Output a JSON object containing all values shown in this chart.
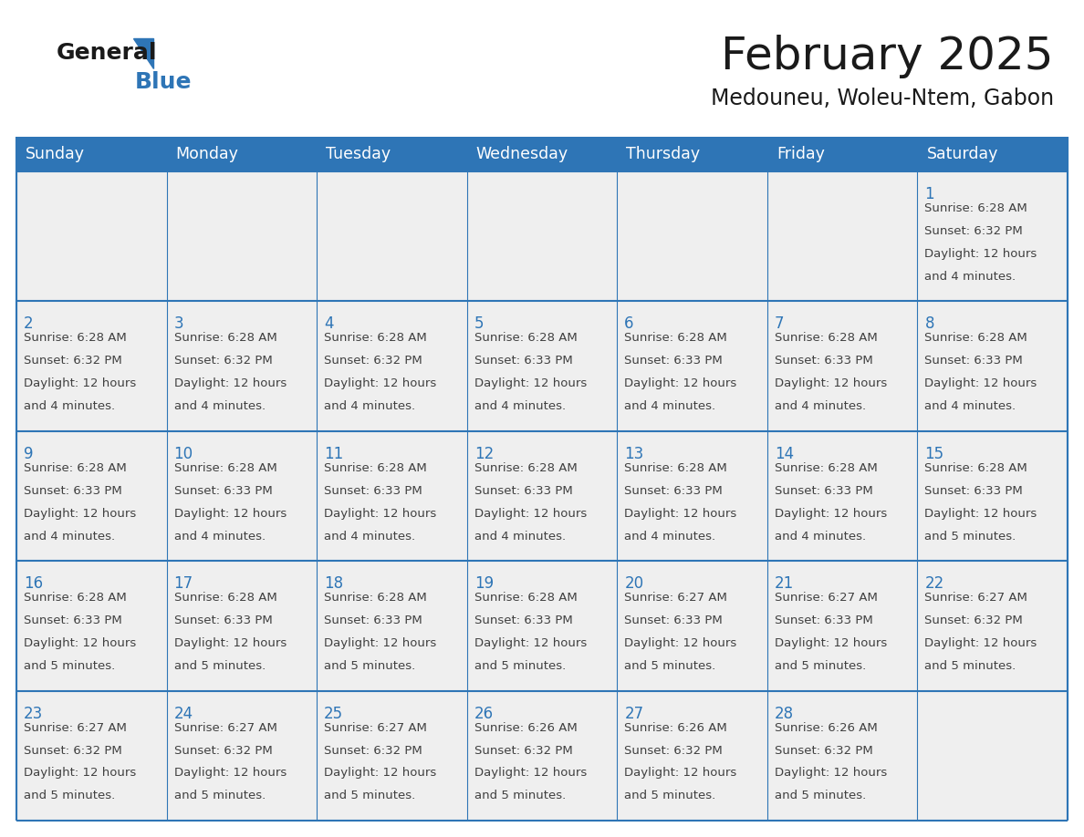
{
  "title": "February 2025",
  "subtitle": "Medouneu, Woleu-Ntem, Gabon",
  "days_of_week": [
    "Sunday",
    "Monday",
    "Tuesday",
    "Wednesday",
    "Thursday",
    "Friday",
    "Saturday"
  ],
  "header_bg": "#2E75B6",
  "header_text": "#FFFFFF",
  "cell_bg": "#EFEFEF",
  "border_color": "#2E75B6",
  "day_num_color": "#2E75B6",
  "cell_text_color": "#404040",
  "title_color": "#1a1a1a",
  "subtitle_color": "#1a1a1a",
  "logo_general_color": "#1a1a1a",
  "logo_blue_color": "#2E75B6",
  "calendar_data": [
    [
      null,
      null,
      null,
      null,
      null,
      null,
      1
    ],
    [
      2,
      3,
      4,
      5,
      6,
      7,
      8
    ],
    [
      9,
      10,
      11,
      12,
      13,
      14,
      15
    ],
    [
      16,
      17,
      18,
      19,
      20,
      21,
      22
    ],
    [
      23,
      24,
      25,
      26,
      27,
      28,
      null
    ]
  ],
  "sunrise_data": {
    "1": "6:28 AM",
    "2": "6:28 AM",
    "3": "6:28 AM",
    "4": "6:28 AM",
    "5": "6:28 AM",
    "6": "6:28 AM",
    "7": "6:28 AM",
    "8": "6:28 AM",
    "9": "6:28 AM",
    "10": "6:28 AM",
    "11": "6:28 AM",
    "12": "6:28 AM",
    "13": "6:28 AM",
    "14": "6:28 AM",
    "15": "6:28 AM",
    "16": "6:28 AM",
    "17": "6:28 AM",
    "18": "6:28 AM",
    "19": "6:28 AM",
    "20": "6:27 AM",
    "21": "6:27 AM",
    "22": "6:27 AM",
    "23": "6:27 AM",
    "24": "6:27 AM",
    "25": "6:27 AM",
    "26": "6:26 AM",
    "27": "6:26 AM",
    "28": "6:26 AM"
  },
  "sunset_data": {
    "1": "6:32 PM",
    "2": "6:32 PM",
    "3": "6:32 PM",
    "4": "6:32 PM",
    "5": "6:33 PM",
    "6": "6:33 PM",
    "7": "6:33 PM",
    "8": "6:33 PM",
    "9": "6:33 PM",
    "10": "6:33 PM",
    "11": "6:33 PM",
    "12": "6:33 PM",
    "13": "6:33 PM",
    "14": "6:33 PM",
    "15": "6:33 PM",
    "16": "6:33 PM",
    "17": "6:33 PM",
    "18": "6:33 PM",
    "19": "6:33 PM",
    "20": "6:33 PM",
    "21": "6:33 PM",
    "22": "6:32 PM",
    "23": "6:32 PM",
    "24": "6:32 PM",
    "25": "6:32 PM",
    "26": "6:32 PM",
    "27": "6:32 PM",
    "28": "6:32 PM"
  },
  "daylight_data": {
    "1": "12 hours and 4 minutes.",
    "2": "12 hours and 4 minutes.",
    "3": "12 hours and 4 minutes.",
    "4": "12 hours and 4 minutes.",
    "5": "12 hours and 4 minutes.",
    "6": "12 hours and 4 minutes.",
    "7": "12 hours and 4 minutes.",
    "8": "12 hours and 4 minutes.",
    "9": "12 hours and 4 minutes.",
    "10": "12 hours and 4 minutes.",
    "11": "12 hours and 4 minutes.",
    "12": "12 hours and 4 minutes.",
    "13": "12 hours and 4 minutes.",
    "14": "12 hours and 4 minutes.",
    "15": "12 hours and 5 minutes.",
    "16": "12 hours and 5 minutes.",
    "17": "12 hours and 5 minutes.",
    "18": "12 hours and 5 minutes.",
    "19": "12 hours and 5 minutes.",
    "20": "12 hours and 5 minutes.",
    "21": "12 hours and 5 minutes.",
    "22": "12 hours and 5 minutes.",
    "23": "12 hours and 5 minutes.",
    "24": "12 hours and 5 minutes.",
    "25": "12 hours and 5 minutes.",
    "26": "12 hours and 5 minutes.",
    "27": "12 hours and 5 minutes.",
    "28": "12 hours and 5 minutes."
  }
}
